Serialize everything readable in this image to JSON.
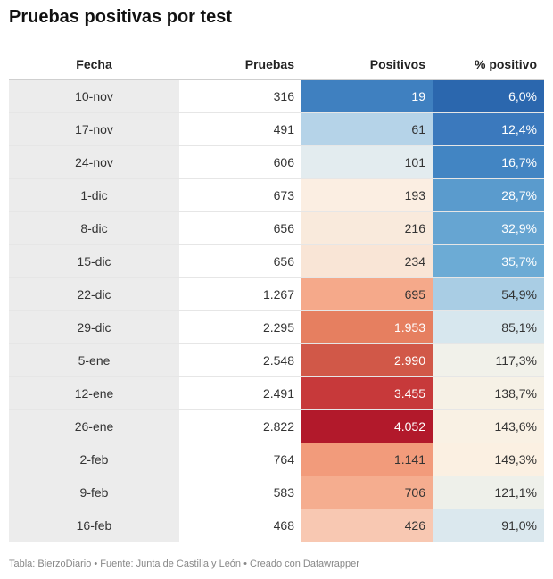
{
  "title": "Pruebas positivas por test",
  "footer": "Tabla: BierzoDiario • Fuente: Junta de Castilla y León • Creado con Datawrapper",
  "chart_data": {
    "type": "table",
    "columns": [
      "Fecha",
      "Pruebas",
      "Positivos",
      "% positivo"
    ],
    "rows": [
      {
        "fecha": "10-nov",
        "pruebas": "316",
        "positivos": "19",
        "pct": "6,0%",
        "positivos_color": "#3f80c0",
        "pct_color": "#2b67ae",
        "positivos_text": "#ffffff",
        "pct_text": "#ffffff"
      },
      {
        "fecha": "17-nov",
        "pruebas": "491",
        "positivos": "61",
        "pct": "12,4%",
        "positivos_color": "#b5d3e8",
        "pct_color": "#3b79bd",
        "positivos_text": "#333333",
        "pct_text": "#ffffff"
      },
      {
        "fecha": "24-nov",
        "pruebas": "606",
        "positivos": "101",
        "pct": "16,7%",
        "positivos_color": "#e3ecef",
        "pct_color": "#4285c3",
        "positivos_text": "#333333",
        "pct_text": "#ffffff"
      },
      {
        "fecha": "1-dic",
        "pruebas": "673",
        "positivos": "193",
        "pct": "28,7%",
        "positivos_color": "#fbeee2",
        "pct_color": "#5a9bcd",
        "positivos_text": "#333333",
        "pct_text": "#ffffff"
      },
      {
        "fecha": "8-dic",
        "pruebas": "656",
        "positivos": "216",
        "pct": "32,9%",
        "positivos_color": "#f9eadc",
        "pct_color": "#66a5d2",
        "positivos_text": "#333333",
        "pct_text": "#ffffff"
      },
      {
        "fecha": "15-dic",
        "pruebas": "656",
        "positivos": "234",
        "pct": "35,7%",
        "positivos_color": "#f9e5d6",
        "pct_color": "#6cabd5",
        "positivos_text": "#333333",
        "pct_text": "#ffffff"
      },
      {
        "fecha": "22-dic",
        "pruebas": "1.267",
        "positivos": "695",
        "pct": "54,9%",
        "positivos_color": "#f5a98a",
        "pct_color": "#a9cde4",
        "positivos_text": "#333333",
        "pct_text": "#333333"
      },
      {
        "fecha": "29-dic",
        "pruebas": "2.295",
        "positivos": "1.953",
        "pct": "85,1%",
        "positivos_color": "#e67f60",
        "pct_color": "#d7e7ee",
        "positivos_text": "#ffffff",
        "pct_text": "#333333"
      },
      {
        "fecha": "5-ene",
        "pruebas": "2.548",
        "positivos": "2.990",
        "pct": "117,3%",
        "positivos_color": "#d15848",
        "pct_color": "#f1f1ea",
        "positivos_text": "#ffffff",
        "pct_text": "#333333"
      },
      {
        "fecha": "12-ene",
        "pruebas": "2.491",
        "positivos": "3.455",
        "pct": "138,7%",
        "positivos_color": "#c7393a",
        "pct_color": "#f6f1e6",
        "positivos_text": "#ffffff",
        "pct_text": "#333333"
      },
      {
        "fecha": "26-ene",
        "pruebas": "2.822",
        "positivos": "4.052",
        "pct": "143,6%",
        "positivos_color": "#b2192b",
        "pct_color": "#f9f1e4",
        "positivos_text": "#ffffff",
        "pct_text": "#333333"
      },
      {
        "fecha": "2-feb",
        "pruebas": "764",
        "positivos": "1.141",
        "pct": "149,3%",
        "positivos_color": "#f29b7b",
        "pct_color": "#fbf0e2",
        "positivos_text": "#333333",
        "pct_text": "#333333"
      },
      {
        "fecha": "9-feb",
        "pruebas": "583",
        "positivos": "706",
        "pct": "121,1%",
        "positivos_color": "#f5ad8f",
        "pct_color": "#eef0ea",
        "positivos_text": "#333333",
        "pct_text": "#333333"
      },
      {
        "fecha": "16-feb",
        "pruebas": "468",
        "positivos": "426",
        "pct": "91,0%",
        "positivos_color": "#f8c8b2",
        "pct_color": "#dbe8ee",
        "positivos_text": "#333333",
        "pct_text": "#333333"
      }
    ]
  }
}
